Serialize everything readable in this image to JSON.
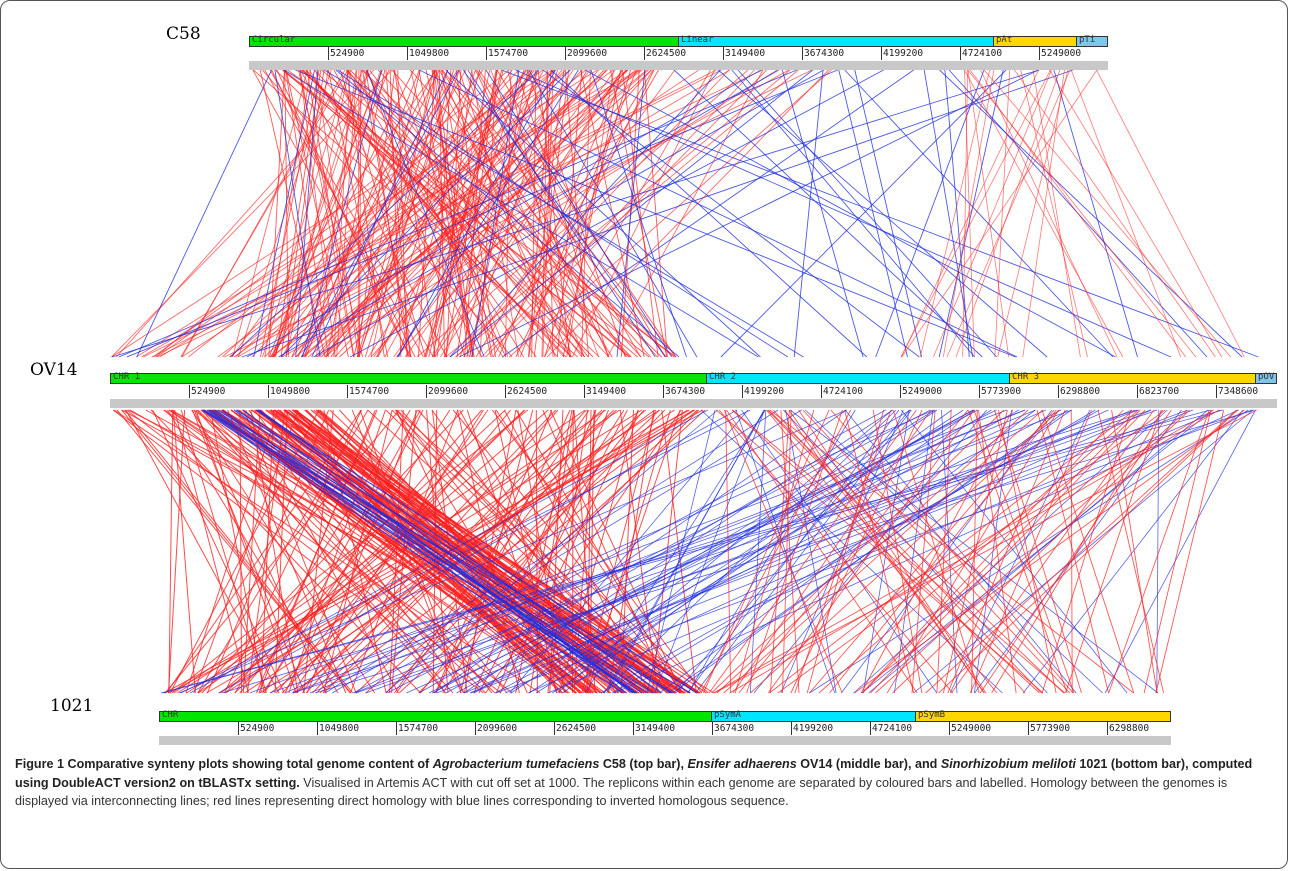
{
  "genomes": [
    {
      "name": "C58",
      "replicons": [
        {
          "label": "Circular",
          "color": "#00e600"
        },
        {
          "label": "Linear",
          "color": "#00e6ff"
        },
        {
          "label": "pAt",
          "color": "#ffd700"
        },
        {
          "label": "pTi",
          "color": "#7fc6e8"
        }
      ],
      "ticks": [
        "524900",
        "1049800",
        "1574700",
        "2099600",
        "2624500",
        "3149400",
        "3674300",
        "4199200",
        "4724100",
        "5249000"
      ]
    },
    {
      "name": "OV14",
      "replicons": [
        {
          "label": "CHR 1",
          "color": "#00e600"
        },
        {
          "label": "CHR 2",
          "color": "#00e6ff"
        },
        {
          "label": "CHR 3",
          "color": "#ffd700"
        },
        {
          "label": "pOV",
          "color": "#7fc6e8"
        }
      ],
      "ticks": [
        "524900",
        "1049800",
        "1574700",
        "2099600",
        "2624500",
        "3149400",
        "3674300",
        "4199200",
        "4724100",
        "5249000",
        "5773900",
        "6298800",
        "6823700",
        "7348600"
      ]
    },
    {
      "name": "1021",
      "replicons": [
        {
          "label": "CHR",
          "color": "#00e600"
        },
        {
          "label": "pSymA",
          "color": "#00e6ff"
        },
        {
          "label": "pSymB",
          "color": "#ffd700"
        }
      ],
      "ticks": [
        "524900",
        "1049800",
        "1574700",
        "2099600",
        "2624500",
        "3149400",
        "3674300",
        "4199200",
        "4724100",
        "5249000",
        "5773900",
        "6298800"
      ]
    }
  ],
  "colors": {
    "direct": "#ff1f1f",
    "inverted": "#1f2fe0"
  },
  "caption": {
    "lead": "Figure 1",
    "bold": [
      " Comparative synteny plots showing total genome content of ",
      "Agrobacterium tumefaciens",
      " C58 (top bar), ",
      "Ensifer adhaerens",
      " OV14 (middle bar), and ",
      "Sinorhizobium meliloti",
      " 1021 (bottom bar), computed using DoubleACT version2 on tBLASTx setting."
    ],
    "body": " Visualised in Artemis ACT with cut off set at 1000. The replicons within each genome are separated by coloured bars and labelled. Homology between the genomes is displayed via interconnecting lines; red lines representing direct homology with blue lines corresponding to inverted homologous sequence."
  }
}
